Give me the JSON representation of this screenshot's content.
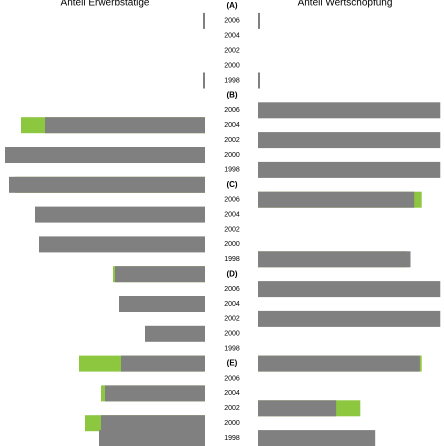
{
  "chart_data": {
    "type": "butterfly",
    "title_left": "Anteil Erwerbstätige",
    "title_right": "Anteil Wertschöpfung",
    "categories": [
      "(A)",
      "2006",
      "2004",
      "2002",
      "2000",
      "1998",
      "(B)",
      "2006",
      "2004",
      "2002",
      "2000",
      "1998",
      "(C)",
      "2006",
      "2004",
      "2002",
      "2000",
      "1998",
      "(D)",
      "2006",
      "2004",
      "2002",
      "2000",
      "1998",
      "(E)",
      "2006",
      "2004",
      "2002",
      "2000",
      "1998"
    ],
    "xlim": [
      0,
      100
    ],
    "left_series": [
      {
        "color": "#8dc63f",
        "values": [
          null,
          null,
          null,
          null,
          null,
          null,
          null,
          null,
          92,
          null,
          null,
          null,
          95,
          null,
          null,
          null,
          null,
          null,
          46,
          null,
          null,
          null,
          null,
          null,
          63,
          null,
          52,
          null,
          60,
          null
        ]
      },
      {
        "color": "#808080",
        "values": [
          null,
          1,
          null,
          null,
          null,
          1,
          null,
          null,
          80,
          null,
          100,
          null,
          98,
          null,
          85,
          null,
          83,
          null,
          45,
          null,
          43,
          null,
          30,
          null,
          42,
          null,
          50,
          null,
          52,
          53
        ]
      }
    ],
    "right_series": [
      {
        "color": "#8dc63f",
        "values": [
          null,
          null,
          null,
          null,
          null,
          null,
          null,
          null,
          null,
          null,
          null,
          null,
          null,
          88,
          null,
          null,
          null,
          80,
          null,
          null,
          null,
          null,
          null,
          null,
          88,
          null,
          null,
          55,
          null,
          null
        ]
      },
      {
        "color": "#808080",
        "values": [
          null,
          1,
          null,
          null,
          null,
          1,
          null,
          98,
          null,
          98,
          null,
          98,
          null,
          84,
          null,
          null,
          null,
          82,
          null,
          98,
          null,
          98,
          null,
          null,
          87,
          null,
          null,
          42,
          null,
          63
        ]
      }
    ]
  }
}
